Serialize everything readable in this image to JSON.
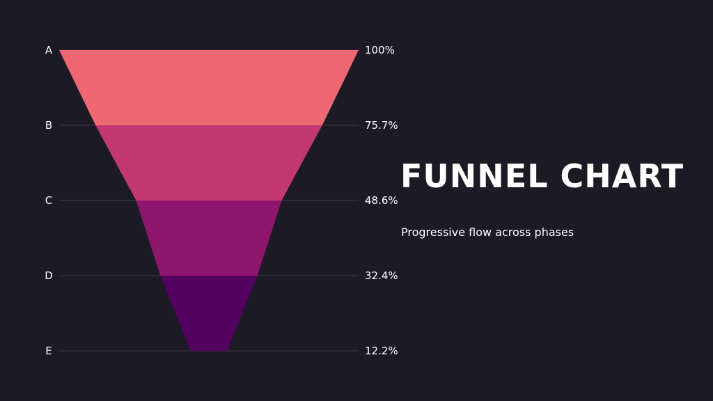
{
  "chart_data": {
    "type": "funnel",
    "title": "FUNNEL CHART",
    "subtitle": "Progressive flow across phases",
    "categories": [
      "A",
      "B",
      "C",
      "D",
      "E"
    ],
    "values": [
      100,
      75.7,
      48.6,
      32.4,
      12.2
    ],
    "value_labels": [
      "100%",
      "75.7%",
      "48.6%",
      "32.4%",
      "12.2%"
    ],
    "segment_colors": [
      "#ee6874",
      "#c23873",
      "#8e166d",
      "#540260"
    ],
    "background": "#1c1a25",
    "gridline_color": "#3a3845",
    "grid": true
  }
}
